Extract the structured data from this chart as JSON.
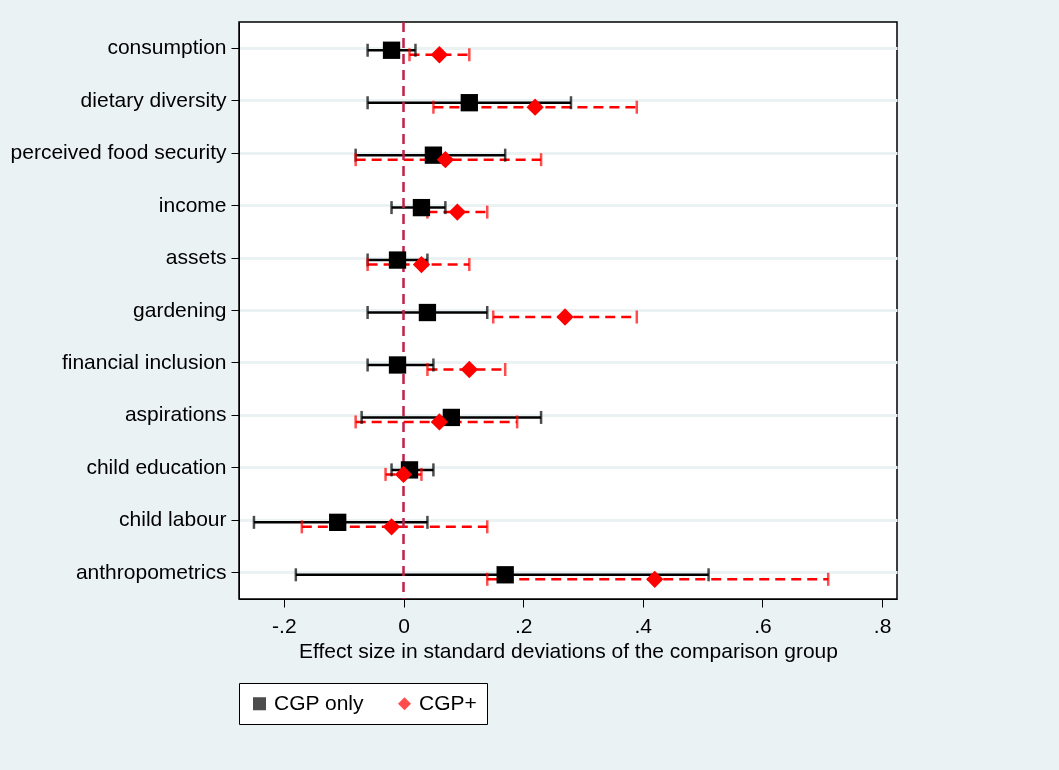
{
  "chart_data": {
    "type": "scatter",
    "orientation": "horizontal",
    "xlabel": "Effect size in standard deviations of the comparison group",
    "categories": [
      "consumption",
      "dietary diversity",
      "perceived food security",
      "income",
      "assets",
      "gardening",
      "financial inclusion",
      "aspirations",
      "child education",
      "child labour",
      "anthropometrics"
    ],
    "series": [
      {
        "name": "CGP only",
        "color": "#000000",
        "marker": "square",
        "line_style": "solid",
        "values": [
          -0.02,
          0.11,
          0.05,
          0.03,
          -0.01,
          0.04,
          -0.01,
          0.08,
          0.01,
          -0.11,
          0.17
        ],
        "errors": [
          [
            -0.06,
            0.02
          ],
          [
            -0.06,
            0.28
          ],
          [
            -0.08,
            0.17
          ],
          [
            -0.02,
            0.07
          ],
          [
            -0.06,
            0.04
          ],
          [
            -0.06,
            0.14
          ],
          [
            -0.06,
            0.05
          ],
          [
            -0.07,
            0.23
          ],
          [
            -0.02,
            0.05
          ],
          [
            -0.25,
            0.04
          ],
          [
            -0.18,
            0.51
          ]
        ]
      },
      {
        "name": "CGP+",
        "color": "#ff0000",
        "marker": "diamond",
        "line_style": "dashed",
        "values": [
          0.06,
          0.22,
          0.07,
          0.09,
          0.03,
          0.27,
          0.11,
          0.06,
          0.0,
          -0.02,
          0.42
        ],
        "errors": [
          [
            0.01,
            0.11
          ],
          [
            0.05,
            0.39
          ],
          [
            -0.08,
            0.23
          ],
          [
            0.04,
            0.14
          ],
          [
            -0.06,
            0.11
          ],
          [
            0.15,
            0.39
          ],
          [
            0.04,
            0.17
          ],
          [
            -0.08,
            0.19
          ],
          [
            -0.03,
            0.03
          ],
          [
            -0.17,
            0.14
          ],
          [
            0.14,
            0.71
          ]
        ]
      }
    ],
    "xlim": [
      -0.275,
      0.825
    ],
    "xticks": [
      {
        "value": -0.2,
        "label": "-.2"
      },
      0,
      {
        "value": 0.2,
        "label": ".2"
      },
      {
        "value": 0.4,
        "label": ".4"
      },
      {
        "value": 0.6,
        "label": ".6"
      },
      {
        "value": 0.8,
        "label": ".8"
      }
    ],
    "ref_lines": [
      {
        "axis": "x",
        "value": 0,
        "color": "#c0204a",
        "line_style": "dashed"
      }
    ],
    "grid": "y",
    "legend": "bottom"
  }
}
